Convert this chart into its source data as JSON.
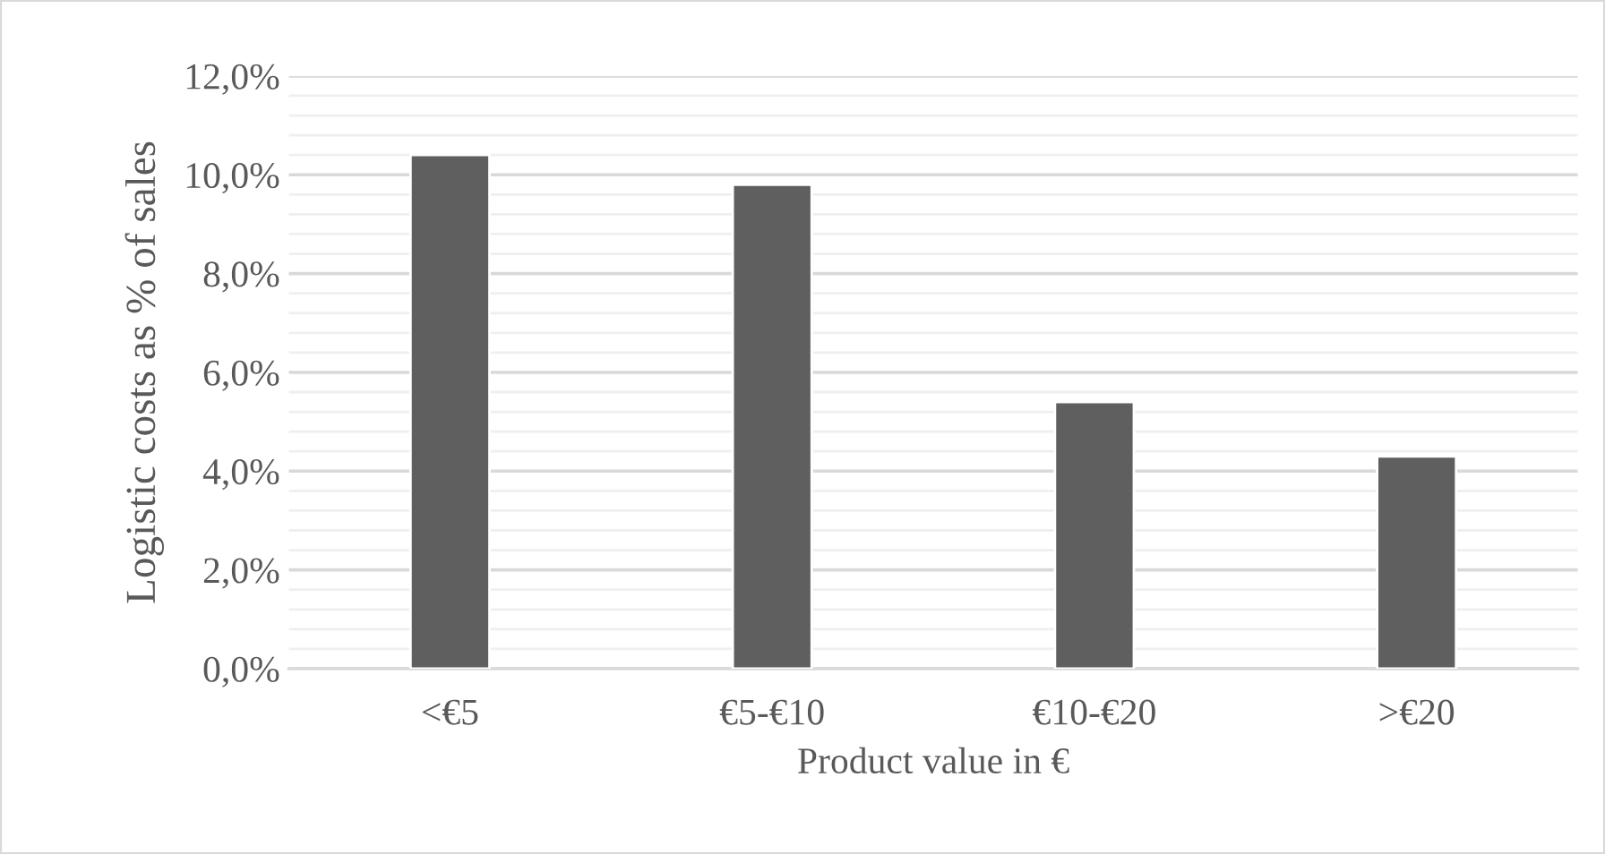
{
  "chart_data": {
    "type": "bar",
    "categories": [
      "<€5",
      "€5-€10",
      "€10-€20",
      ">€20"
    ],
    "values": [
      10.4,
      9.8,
      5.4,
      4.3
    ],
    "color": "#5f5f5f",
    "xlabel": "Product value in €",
    "ylabel": "Logistic costs as % of sales",
    "ylim": [
      0,
      12
    ],
    "yticks": [
      {
        "value": 0,
        "label": "0,0%"
      },
      {
        "value": 0.4,
        "label": null
      },
      {
        "value": 0.8,
        "label": null
      },
      {
        "value": 1.2,
        "label": null
      },
      {
        "value": 1.6,
        "label": null
      },
      {
        "value": 2,
        "label": "2,0%"
      },
      {
        "value": 2.4,
        "label": null
      },
      {
        "value": 2.8,
        "label": null
      },
      {
        "value": 3.2,
        "label": null
      },
      {
        "value": 3.6,
        "label": null
      },
      {
        "value": 4,
        "label": "4,0%"
      },
      {
        "value": 4.4,
        "label": null
      },
      {
        "value": 4.8,
        "label": null
      },
      {
        "value": 5.2,
        "label": null
      },
      {
        "value": 5.6,
        "label": null
      },
      {
        "value": 6,
        "label": "6,0%"
      },
      {
        "value": 6.4,
        "label": null
      },
      {
        "value": 6.8,
        "label": null
      },
      {
        "value": 7.2,
        "label": null
      },
      {
        "value": 7.6,
        "label": null
      },
      {
        "value": 8,
        "label": "8,0%"
      },
      {
        "value": 8.4,
        "label": null
      },
      {
        "value": 8.8,
        "label": null
      },
      {
        "value": 9.2,
        "label": null
      },
      {
        "value": 9.6,
        "label": null
      },
      {
        "value": 10,
        "label": "10,0%"
      },
      {
        "value": 10.4,
        "label": null
      },
      {
        "value": 10.8,
        "label": null
      },
      {
        "value": 11.2,
        "label": null
      },
      {
        "value": 11.6,
        "label": null
      },
      {
        "value": 12,
        "label": "12,0%"
      }
    ],
    "grid": "y"
  }
}
